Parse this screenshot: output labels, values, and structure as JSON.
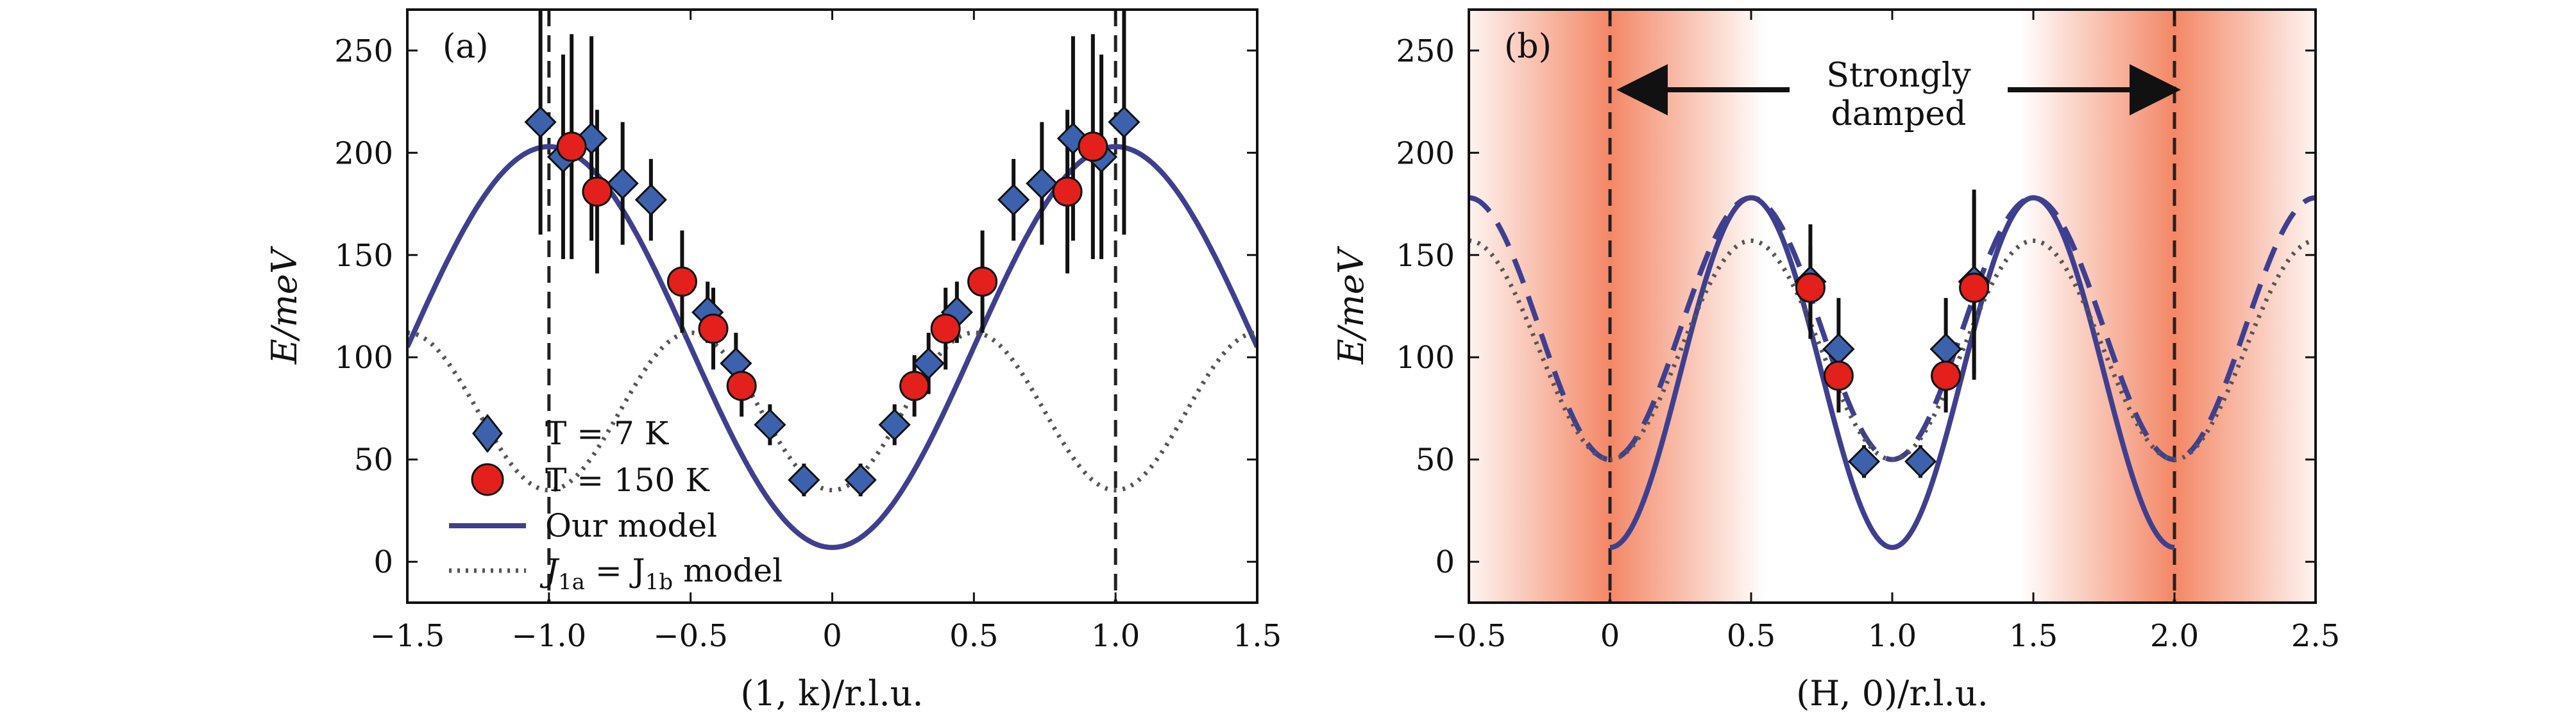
{
  "colors": {
    "model": "#3f3f8f",
    "marker_blue": "#3c62ad",
    "marker_red": "#e3201b",
    "dotted": "#555555",
    "damp": "#f27a55"
  },
  "chart_data": [
    {
      "panel_label": "(a)",
      "type": "scatter",
      "xlabel": "(1, k)/r.l.u.",
      "ylabel": "E/meV",
      "xlim": [
        -1.5,
        1.5
      ],
      "ylim": [
        -20,
        270
      ],
      "xticks": [
        -1.5,
        -1.0,
        -0.5,
        0,
        0.5,
        1.0,
        1.5
      ],
      "xtick_labels": [
        "−1.5",
        "−1.0",
        "−0.5",
        "0",
        "0.5",
        "1.0",
        "1.5"
      ],
      "yticks": [
        0,
        50,
        100,
        150,
        200,
        250
      ],
      "ytick_labels": [
        "0",
        "50",
        "100",
        "150",
        "200",
        "250"
      ],
      "vertical_dashed_lines": [
        -1.0,
        1.0
      ],
      "legend": {
        "t7": "T = 7 K",
        "t150": "T = 150 K",
        "model": "Our model",
        "j_prefix": "J",
        "j_sub_a": "1a",
        "j_eq": " = J",
        "j_sub_b": "1b",
        "j_suffix": " model",
        "placement": "lower-left"
      },
      "series": [
        {
          "name": "T = 7 K",
          "marker": "diamond",
          "points": [
            {
              "x": -1.03,
              "y": 215,
              "err": 55
            },
            {
              "x": -0.95,
              "y": 198,
              "err": 50
            },
            {
              "x": -0.85,
              "y": 207,
              "err": 50
            },
            {
              "x": -0.74,
              "y": 185,
              "err": 30
            },
            {
              "x": -0.64,
              "y": 177,
              "err": 20
            },
            {
              "x": -0.44,
              "y": 122,
              "err": 15
            },
            {
              "x": -0.34,
              "y": 97,
              "err": 15
            },
            {
              "x": -0.22,
              "y": 67,
              "err": 10
            },
            {
              "x": -0.1,
              "y": 40,
              "err": 8
            },
            {
              "x": 0.1,
              "y": 40,
              "err": 8
            },
            {
              "x": 0.22,
              "y": 67,
              "err": 10
            },
            {
              "x": 0.34,
              "y": 97,
              "err": 15
            },
            {
              "x": 0.44,
              "y": 122,
              "err": 15
            },
            {
              "x": 0.64,
              "y": 177,
              "err": 20
            },
            {
              "x": 0.74,
              "y": 185,
              "err": 30
            },
            {
              "x": 0.85,
              "y": 207,
              "err": 50
            },
            {
              "x": 0.95,
              "y": 198,
              "err": 50
            },
            {
              "x": 1.03,
              "y": 215,
              "err": 55
            }
          ]
        },
        {
          "name": "T = 150 K",
          "marker": "circle",
          "points": [
            {
              "x": -0.92,
              "y": 203,
              "err": 55
            },
            {
              "x": -0.83,
              "y": 181,
              "err": 40
            },
            {
              "x": -0.53,
              "y": 137,
              "err": 25
            },
            {
              "x": -0.42,
              "y": 114,
              "err": 20
            },
            {
              "x": -0.32,
              "y": 86,
              "err": 15
            },
            {
              "x": 0.29,
              "y": 86,
              "err": 15
            },
            {
              "x": 0.4,
              "y": 114,
              "err": 20
            },
            {
              "x": 0.53,
              "y": 137,
              "err": 25
            },
            {
              "x": 0.83,
              "y": 181,
              "err": 40
            },
            {
              "x": 0.92,
              "y": 203,
              "err": 55
            }
          ]
        }
      ],
      "curves": [
        {
          "name": "Our model",
          "style": "solid",
          "min": 7,
          "max": 203,
          "period": 2,
          "center": 0
        },
        {
          "name": "J1a = J1b model",
          "style": "dotted",
          "min": 35,
          "max": 112,
          "period": 1,
          "center": 0
        }
      ]
    },
    {
      "panel_label": "(b)",
      "type": "scatter",
      "xlabel": "(H, 0)/r.l.u.",
      "ylabel": "E/meV",
      "xlim": [
        -0.5,
        2.5
      ],
      "ylim": [
        -20,
        270
      ],
      "xticks": [
        -0.5,
        0,
        0.5,
        1.0,
        1.5,
        2.0,
        2.5
      ],
      "xtick_labels": [
        "−0.5",
        "0",
        "0.5",
        "1.0",
        "1.5",
        "2.0",
        "2.5"
      ],
      "yticks": [
        0,
        50,
        100,
        150,
        200,
        250
      ],
      "ytick_labels": [
        "0",
        "50",
        "100",
        "150",
        "200",
        "250"
      ],
      "vertical_dashed_lines": [
        0,
        2.0
      ],
      "damped_centers": [
        0,
        2.0
      ],
      "annotation": {
        "line1": "Strongly",
        "line2": "damped",
        "arrows_to": [
          0,
          2.0
        ]
      },
      "series": [
        {
          "name": "T = 7 K",
          "marker": "diamond",
          "points": [
            {
              "x": 0.71,
              "y": 137,
              "err": 28
            },
            {
              "x": 0.81,
              "y": 104,
              "err": 25
            },
            {
              "x": 0.9,
              "y": 49,
              "err": 8
            },
            {
              "x": 1.1,
              "y": 49,
              "err": 8
            },
            {
              "x": 1.19,
              "y": 104,
              "err": 25
            },
            {
              "x": 1.29,
              "y": 137,
              "err": 45
            }
          ]
        },
        {
          "name": "T = 150 K",
          "marker": "circle",
          "points": [
            {
              "x": 0.71,
              "y": 134,
              "err": 20
            },
            {
              "x": 0.81,
              "y": 91,
              "err": 18
            },
            {
              "x": 1.19,
              "y": 91,
              "err": 18
            },
            {
              "x": 1.29,
              "y": 134,
              "err": 45
            }
          ]
        }
      ],
      "curves": [
        {
          "name": "Our model",
          "style": "solid",
          "min": 7,
          "max": 178,
          "period": 1,
          "center": 1,
          "range": [
            0,
            2
          ]
        },
        {
          "name": "Our model (outside)",
          "style": "dashed",
          "min": 50,
          "max": 178,
          "period": 1,
          "center": 1
        },
        {
          "name": "J1a = J1b model",
          "style": "dotted",
          "min": 50,
          "max": 157,
          "period": 1,
          "center": 1
        }
      ]
    }
  ]
}
